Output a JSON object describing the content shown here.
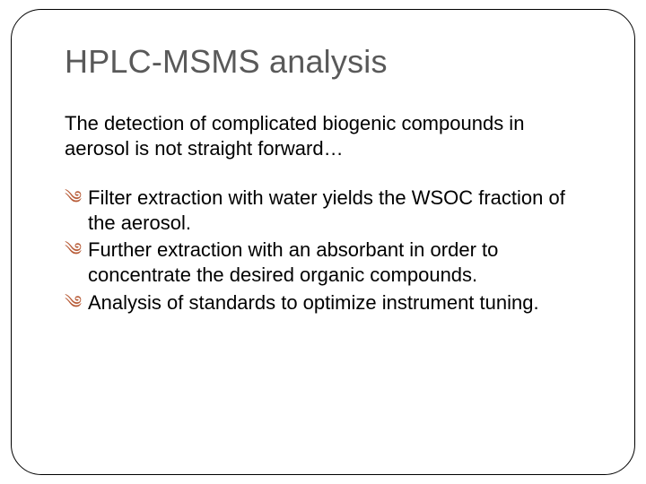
{
  "slide": {
    "title": "HPLC-MSMS analysis",
    "intro": "The detection of complicated biogenic compounds in aerosol is not straight forward…",
    "bullets": [
      "Filter extraction with water yields the WSOC fraction of the aerosol.",
      "Further extraction with an absorbant in order to concentrate the desired organic compounds.",
      "Analysis of standards to optimize instrument tuning."
    ],
    "style": {
      "title_color": "#595959",
      "title_fontsize": 36,
      "body_fontsize": 22,
      "bullet_glyph": "༄",
      "bullet_color": "#b85c38",
      "frame_border_color": "#000000",
      "frame_border_radius": 34,
      "background_color": "#ffffff"
    }
  }
}
